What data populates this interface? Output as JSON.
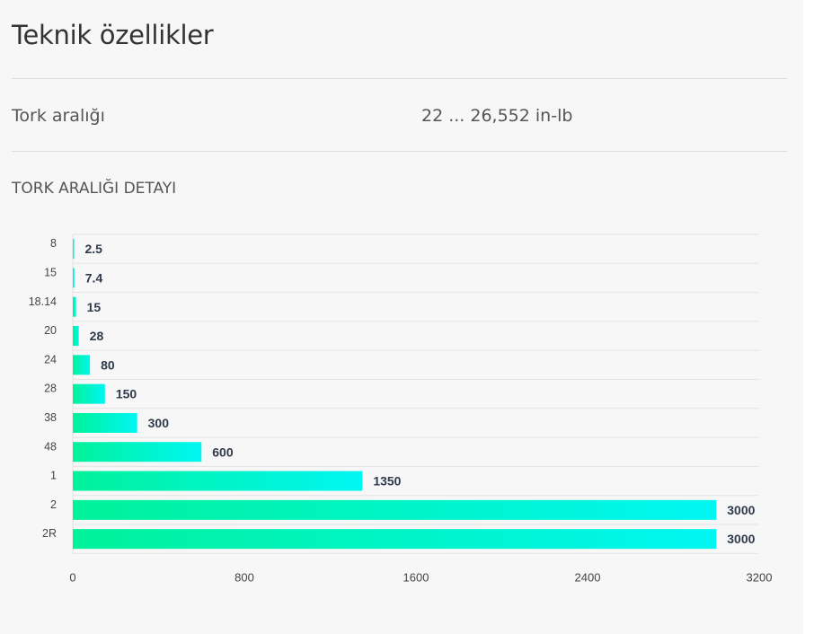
{
  "page": {
    "title": "Teknik özellikler",
    "spec": {
      "label": "Tork aralığı",
      "value": "22 ... 26,552 in-lb"
    },
    "section_title": "TORK ARALIĞI DETAYI"
  },
  "colors": {
    "bar_start": "#00f29a",
    "bar_end": "#00f6f2",
    "grid": "#e3e3e3"
  },
  "chart_data": {
    "type": "bar",
    "orientation": "horizontal",
    "categories": [
      "8",
      "15",
      "18.14",
      "20",
      "24",
      "28",
      "38",
      "48",
      "1",
      "2",
      "2R"
    ],
    "values": [
      2.5,
      7.4,
      15,
      28,
      80,
      150,
      300,
      600,
      1350,
      3000,
      3000
    ],
    "value_labels": [
      "2.5",
      "7.4",
      "15",
      "28",
      "80",
      "150",
      "300",
      "600",
      "1350",
      "3000",
      "3000"
    ],
    "xlim": [
      0,
      3200
    ],
    "xticks": [
      0,
      800,
      1600,
      2400,
      3200
    ],
    "xtick_labels": [
      "0",
      "800",
      "1600",
      "2400",
      "3200"
    ],
    "title": "",
    "xlabel": "",
    "ylabel": "",
    "grid": true,
    "legend": "none"
  }
}
